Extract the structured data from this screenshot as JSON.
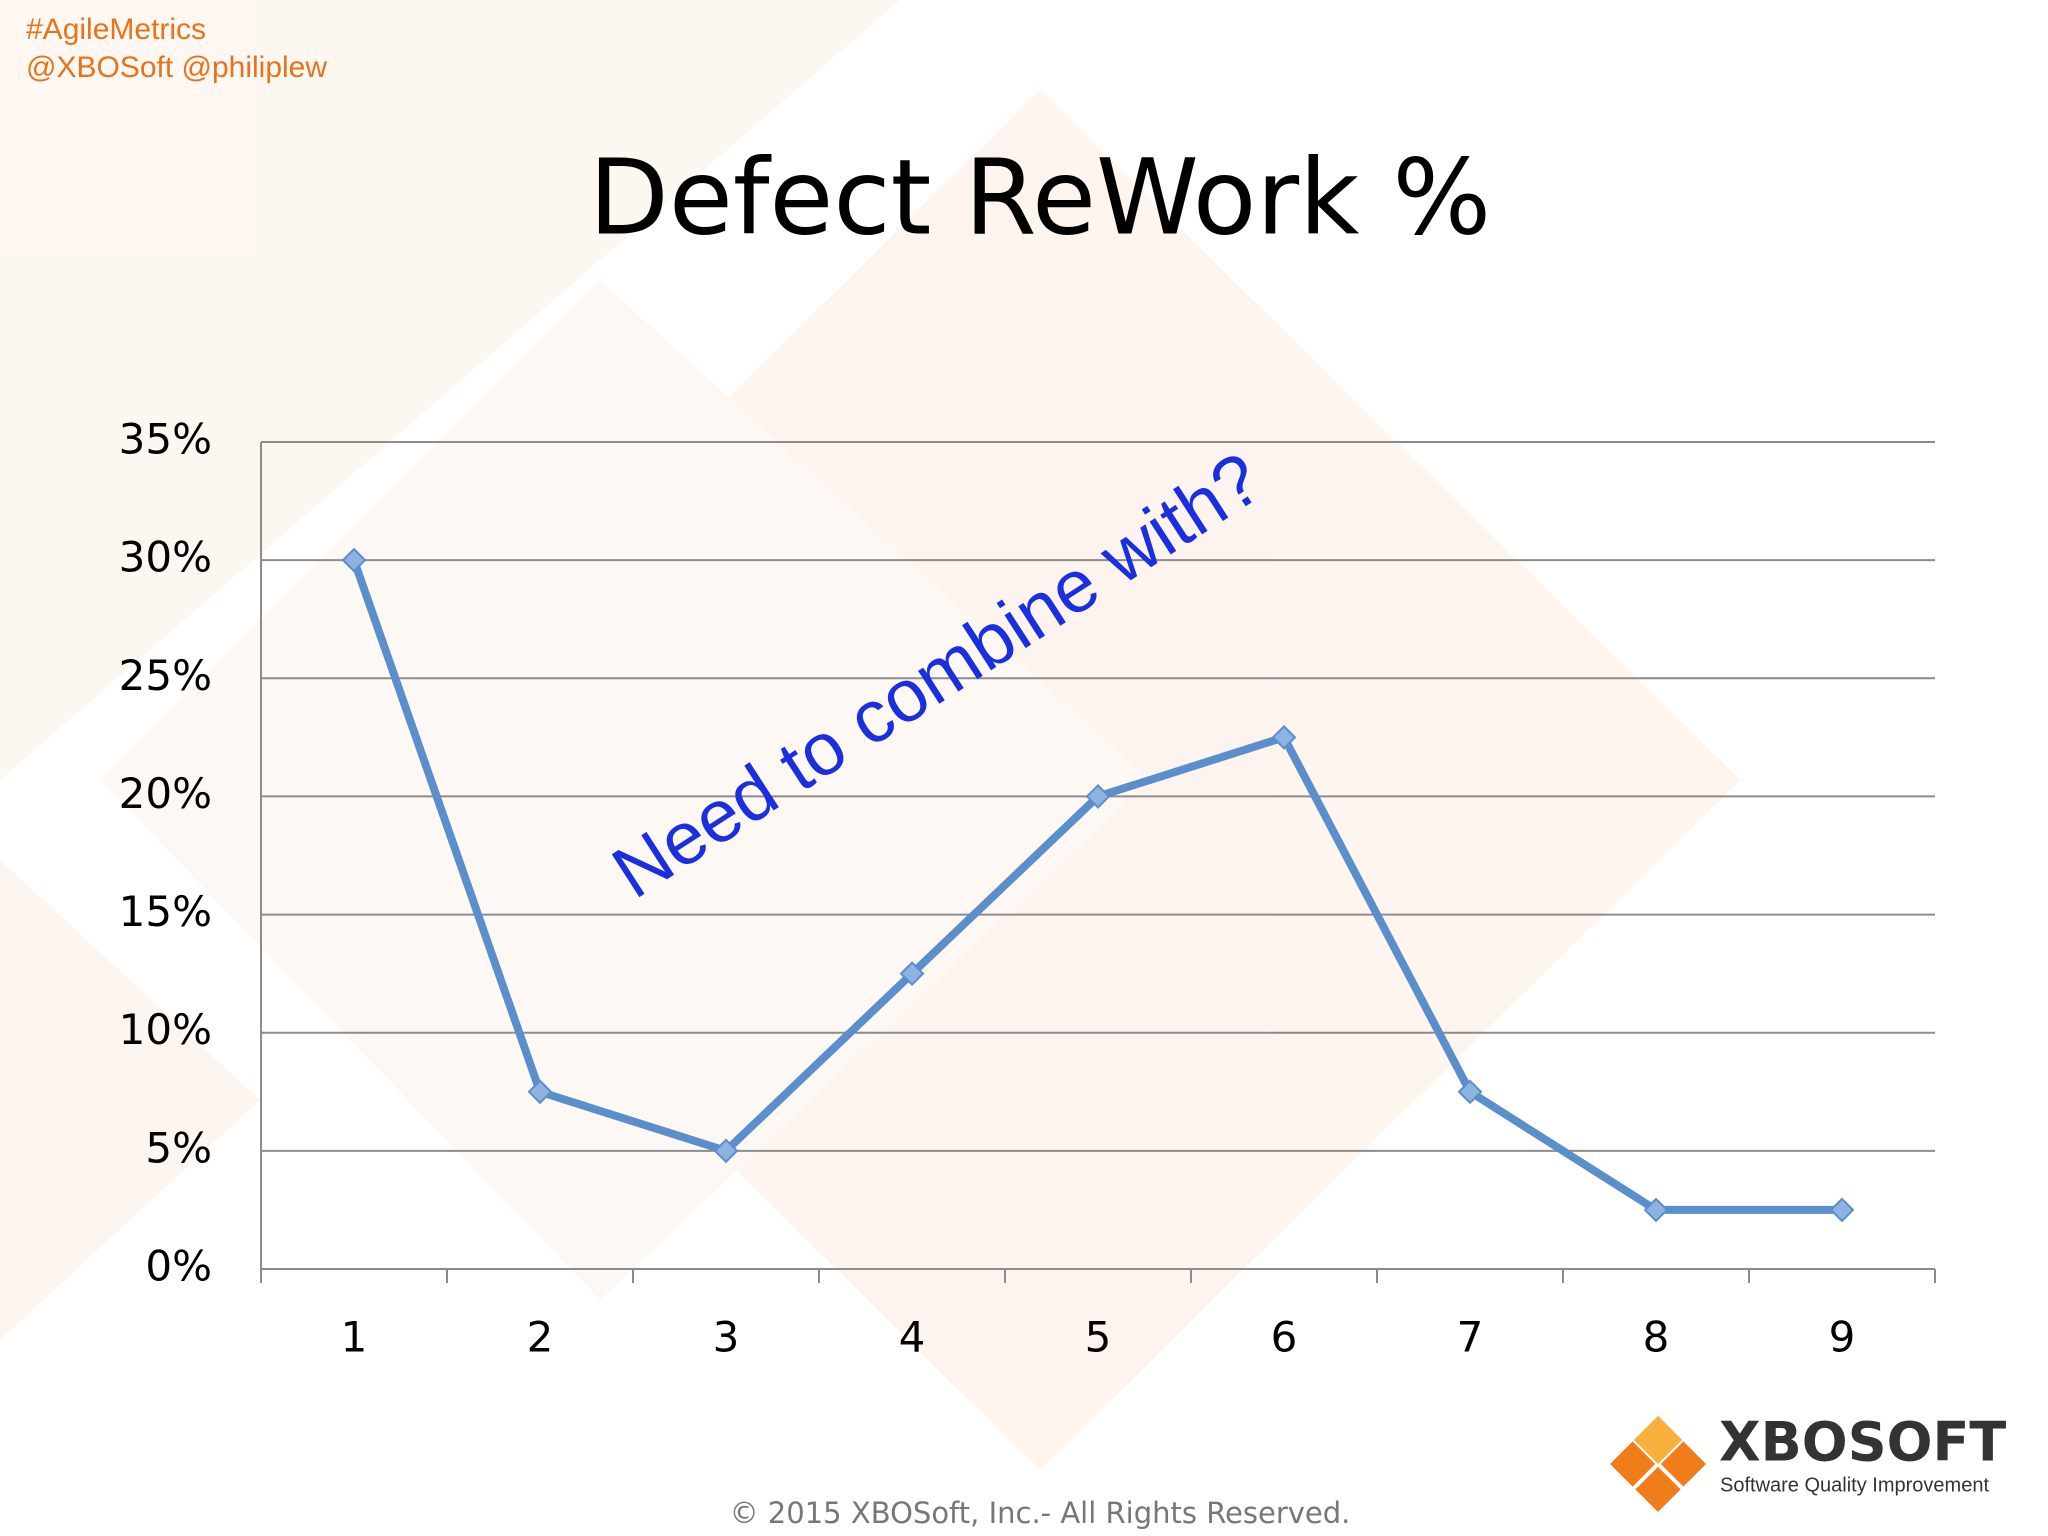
{
  "slide": {
    "hashtag": "#AgileMetrics",
    "handles": "@XBOSoft @philiplew",
    "logo_name": "XBOSOFT",
    "logo_tagline": "Software Quality Improvement",
    "footer": "© 2015 XBOSoft, Inc.- All Rights Reserved."
  },
  "chart_data": {
    "type": "line",
    "title": "Defect ReWork %",
    "annotation": "Need to combine with?",
    "categories": [
      "1",
      "2",
      "3",
      "4",
      "5",
      "6",
      "7",
      "8",
      "9"
    ],
    "values": [
      30,
      7.5,
      5,
      12.5,
      20,
      22.5,
      7.5,
      2.5,
      2.5
    ],
    "color": "#5b8fcb",
    "marker_color": "#8db3e2",
    "ylim": [
      0,
      35
    ],
    "yticks": [
      {
        "value": 0,
        "label": "0%"
      },
      {
        "value": 5,
        "label": "5%"
      },
      {
        "value": 10,
        "label": "10%"
      },
      {
        "value": 15,
        "label": "15%"
      },
      {
        "value": 20,
        "label": "20%"
      },
      {
        "value": 25,
        "label": "25%"
      },
      {
        "value": 30,
        "label": "30%"
      },
      {
        "value": 35,
        "label": "35%"
      }
    ],
    "grid": true
  }
}
